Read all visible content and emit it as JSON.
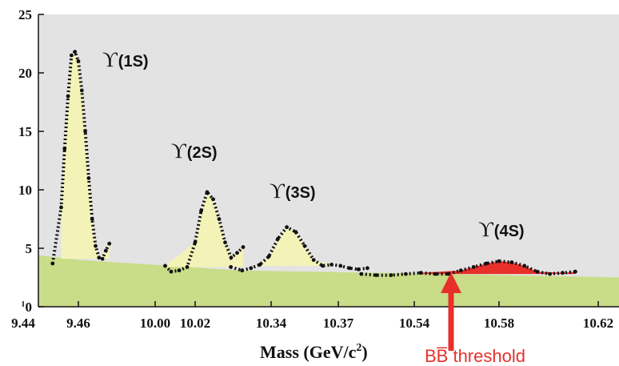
{
  "chart_data": {
    "type": "scatter",
    "xlabel_main": "Mass (GeV/c",
    "xlabel_sup": "2",
    "xlabel_end": ")",
    "ylim": [
      0,
      25
    ],
    "y_ticks": [
      "0",
      "5",
      "10",
      "15",
      "20",
      "25"
    ],
    "x_ticks": [
      "9.44",
      "9.46",
      "10.00",
      "10.02",
      "10.34",
      "10.37",
      "10.54",
      "10.58",
      "10.62"
    ],
    "grid": false,
    "annotations": {
      "peaks": [
        {
          "symbol": "ϒ",
          "label": "(1S)"
        },
        {
          "symbol": "ϒ",
          "label": "(2S)"
        },
        {
          "symbol": "ϒ",
          "label": "(3S)"
        },
        {
          "symbol": "ϒ",
          "label": "(4S)"
        }
      ],
      "threshold": "BB̅ threshold"
    },
    "colors": {
      "plot_background": "#e3e3e3",
      "continuum_fill": "#c9dc87",
      "peak_fill": "#f3f3b8",
      "above_threshold_fill": "#e8302a",
      "points": "#111111",
      "threshold_arrow": "#e8302a"
    },
    "segments": [
      {
        "name": "Υ(1S) region",
        "x": [
          9.445,
          9.45,
          9.452,
          9.454,
          9.456,
          9.458,
          9.46,
          9.462,
          9.464,
          9.466,
          9.468,
          9.47,
          9.472,
          9.474,
          9.476,
          9.478
        ],
        "y": [
          3.7,
          8.5,
          13.5,
          18,
          21.5,
          21.8,
          21,
          18.5,
          15,
          11,
          7.5,
          5.2,
          4.2,
          4.1,
          4.8,
          5.4
        ]
      },
      {
        "name": "Υ(2S) region",
        "x": [
          10.005,
          10.008,
          10.012,
          10.016,
          10.02,
          10.023,
          10.026,
          10.029,
          10.032,
          10.035,
          10.038,
          10.041,
          10.044
        ],
        "y": [
          3.5,
          3.0,
          3.1,
          3.4,
          5.5,
          8.2,
          9.8,
          9.2,
          7.5,
          5.5,
          4.2,
          4.6,
          5.1
        ]
      },
      {
        "name": "Υ(3S) region",
        "x": [
          10.322,
          10.327,
          10.331,
          10.335,
          10.339,
          10.343,
          10.347,
          10.351,
          10.355,
          10.359,
          10.363,
          10.367,
          10.371,
          10.375,
          10.379,
          10.383
        ],
        "y": [
          3.4,
          3.1,
          3.3,
          3.6,
          4.3,
          5.8,
          6.8,
          6.4,
          5.2,
          4.0,
          3.5,
          3.6,
          3.5,
          3.3,
          3.2,
          3.3
        ]
      },
      {
        "name": "Υ(4S) region",
        "x": [
          10.515,
          10.522,
          10.529,
          10.536,
          10.543,
          10.55,
          10.556,
          10.562,
          10.568,
          10.574,
          10.58,
          10.586,
          10.592,
          10.598,
          10.604,
          10.61,
          10.616
        ],
        "y": [
          2.8,
          2.7,
          2.7,
          2.8,
          2.9,
          2.8,
          2.8,
          3.1,
          3.4,
          3.7,
          3.9,
          3.8,
          3.5,
          3.0,
          2.8,
          2.9,
          3.0
        ]
      }
    ]
  }
}
